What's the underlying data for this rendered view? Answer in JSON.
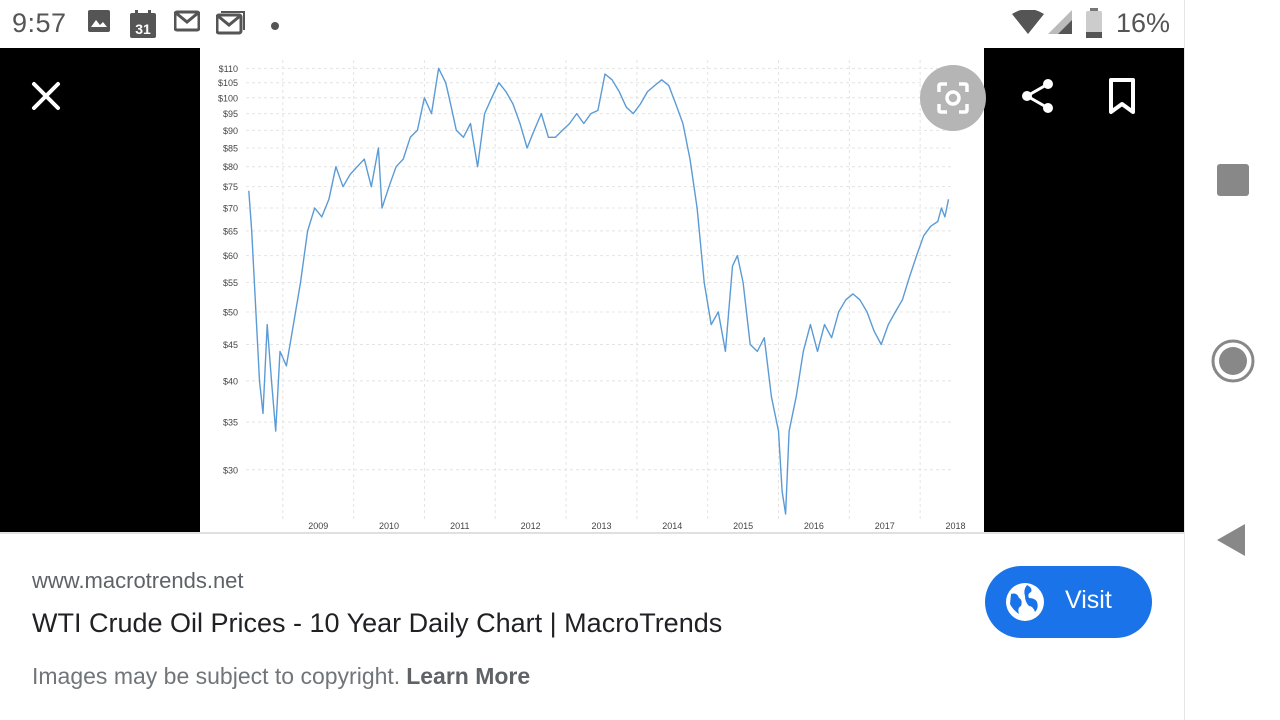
{
  "status_bar": {
    "time": "9:57",
    "calendar_day": "31",
    "battery": "16%"
  },
  "viewer": {
    "icons": [
      "close-icon",
      "lens-icon",
      "share-icon",
      "bookmark-icon"
    ]
  },
  "chart_data": {
    "type": "line",
    "title": "",
    "xlabel": "",
    "ylabel": "",
    "y_scale": "log",
    "ylim": [
      25.5,
      113
    ],
    "yticks": [
      "$110",
      "$105",
      "$100",
      "$95",
      "$90",
      "$85",
      "$80",
      "$75",
      "$70",
      "$65",
      "$60",
      "$55",
      "$50",
      "$45",
      "$40",
      "$35",
      "$30"
    ],
    "xticks": [
      "2009",
      "2010",
      "2011",
      "2012",
      "2013",
      "2014",
      "2015",
      "2016",
      "2017",
      "2018"
    ],
    "xlim": [
      2008.48,
      2018.45
    ],
    "grid": true,
    "series": [
      {
        "color": "#5b9bd5",
        "x": [
          2008.52,
          2008.56,
          2008.62,
          2008.67,
          2008.72,
          2008.78,
          2008.84,
          2008.9,
          2008.96,
          2009.05,
          2009.15,
          2009.25,
          2009.35,
          2009.45,
          2009.55,
          2009.65,
          2009.75,
          2009.85,
          2009.95,
          2010.05,
          2010.15,
          2010.25,
          2010.35,
          2010.4,
          2010.5,
          2010.6,
          2010.7,
          2010.8,
          2010.9,
          2011.0,
          2011.1,
          2011.2,
          2011.3,
          2011.35,
          2011.45,
          2011.55,
          2011.65,
          2011.75,
          2011.85,
          2011.95,
          2012.05,
          2012.15,
          2012.25,
          2012.35,
          2012.45,
          2012.55,
          2012.65,
          2012.75,
          2012.85,
          2012.95,
          2013.05,
          2013.15,
          2013.25,
          2013.35,
          2013.45,
          2013.55,
          2013.65,
          2013.75,
          2013.85,
          2013.95,
          2014.05,
          2014.15,
          2014.25,
          2014.35,
          2014.45,
          2014.55,
          2014.65,
          2014.75,
          2014.85,
          2014.95,
          2015.05,
          2015.15,
          2015.25,
          2015.35,
          2015.42,
          2015.5,
          2015.6,
          2015.7,
          2015.8,
          2015.9,
          2016.0,
          2016.05,
          2016.1,
          2016.15,
          2016.25,
          2016.35,
          2016.45,
          2016.55,
          2016.65,
          2016.75,
          2016.85,
          2016.95,
          2017.05,
          2017.15,
          2017.25,
          2017.35,
          2017.45,
          2017.55,
          2017.65,
          2017.75,
          2017.85,
          2017.95,
          2018.05,
          2018.15,
          2018.25,
          2018.3,
          2018.35,
          2018.4
        ],
        "y": [
          74,
          65,
          50,
          40,
          36,
          48,
          40,
          34,
          44,
          42,
          48,
          55,
          65,
          70,
          68,
          72,
          80,
          75,
          78,
          80,
          82,
          75,
          85,
          70,
          75,
          80,
          82,
          88,
          90,
          100,
          95,
          110,
          105,
          100,
          90,
          88,
          92,
          80,
          95,
          100,
          105,
          102,
          98,
          92,
          85,
          90,
          95,
          88,
          88,
          90,
          92,
          95,
          92,
          95,
          96,
          108,
          106,
          102,
          97,
          95,
          98,
          102,
          104,
          106,
          104,
          98,
          92,
          82,
          70,
          55,
          48,
          50,
          44,
          58,
          60,
          55,
          45,
          44,
          46,
          38,
          34,
          28,
          26,
          34,
          38,
          44,
          48,
          44,
          48,
          46,
          50,
          52,
          53,
          52,
          50,
          47,
          45,
          48,
          50,
          52,
          56,
          60,
          64,
          66,
          67,
          70,
          68,
          72
        ]
      }
    ]
  },
  "info": {
    "domain": "www.macrotrends.net",
    "title": "WTI Crude Oil Prices - 10 Year Daily Chart | MacroTrends",
    "copyright": "Images may be subject to copyright.",
    "learn_more": "Learn More",
    "visit_label": "Visit"
  },
  "colors": {
    "visit_button": "#1a73e8",
    "chart_line": "#5b9bd5",
    "viewer_bg": "#000000"
  }
}
